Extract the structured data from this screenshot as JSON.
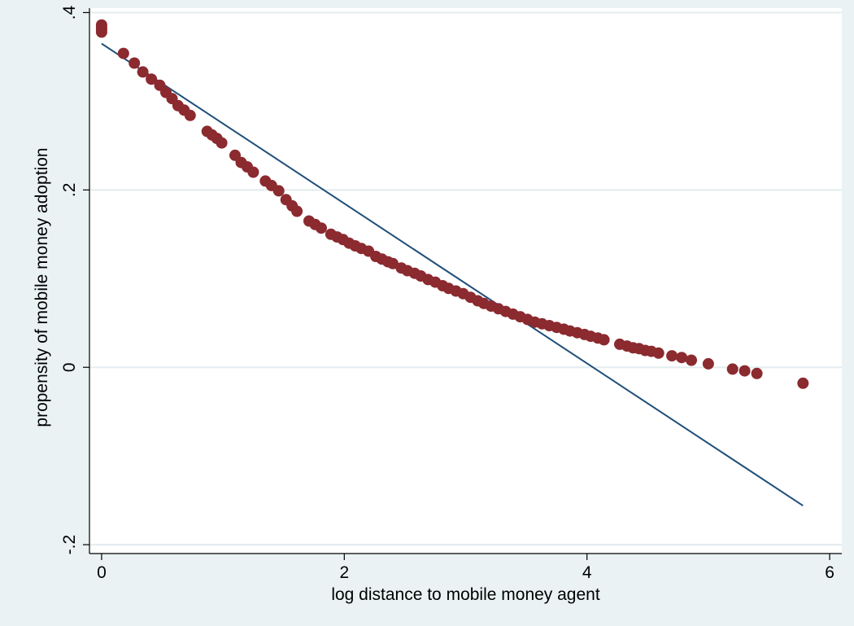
{
  "chart_data": {
    "type": "scatter",
    "title": "",
    "xlabel": "log distance to mobile money agent",
    "ylabel": "propensity of mobile money adoption",
    "xlim": [
      -0.1,
      6.1
    ],
    "ylim": [
      -0.21,
      0.405
    ],
    "x_ticks": [
      0,
      2,
      4,
      6
    ],
    "x_tick_labels": [
      "0",
      "2",
      "4",
      "6"
    ],
    "y_ticks": [
      -0.2,
      0,
      0.2,
      0.4
    ],
    "y_tick_labels": [
      "-.2",
      "0",
      ".2",
      ".4"
    ],
    "grid": "horizontal",
    "legend": "none",
    "colors": {
      "points": "#8b2a2f",
      "fit_line": "#1f4e79",
      "plot_background": "#ffffff",
      "outer_background": "#eaf2f3",
      "grid": "#e3ecee"
    },
    "series": [
      {
        "kind": "scatter",
        "x": [
          0,
          0,
          0,
          0,
          0.18,
          0.27,
          0.34,
          0.41,
          0.48,
          0.53,
          0.58,
          0.63,
          0.68,
          0.73,
          0.87,
          0.91,
          0.95,
          0.99,
          1.1,
          1.15,
          1.2,
          1.25,
          1.35,
          1.4,
          1.46,
          1.52,
          1.57,
          1.61,
          1.71,
          1.76,
          1.81,
          1.89,
          1.94,
          1.99,
          2.04,
          2.09,
          2.14,
          2.2,
          2.26,
          2.31,
          2.36,
          2.4,
          2.47,
          2.52,
          2.58,
          2.63,
          2.69,
          2.75,
          2.81,
          2.86,
          2.92,
          2.98,
          3.04,
          3.1,
          3.15,
          3.21,
          3.27,
          3.33,
          3.39,
          3.45,
          3.51,
          3.57,
          3.63,
          3.69,
          3.75,
          3.81,
          3.86,
          3.92,
          3.98,
          4.03,
          4.09,
          4.14,
          4.27,
          4.33,
          4.38,
          4.43,
          4.48,
          4.53,
          4.59,
          4.7,
          4.78,
          4.86,
          5.0,
          5.2,
          5.3,
          5.4,
          5.78
        ],
        "y": [
          0.386,
          0.383,
          0.381,
          0.378,
          0.354,
          0.343,
          0.333,
          0.325,
          0.318,
          0.31,
          0.303,
          0.295,
          0.29,
          0.284,
          0.266,
          0.262,
          0.258,
          0.253,
          0.239,
          0.231,
          0.226,
          0.22,
          0.21,
          0.205,
          0.199,
          0.189,
          0.182,
          0.176,
          0.165,
          0.161,
          0.157,
          0.15,
          0.147,
          0.144,
          0.14,
          0.137,
          0.134,
          0.131,
          0.125,
          0.122,
          0.119,
          0.117,
          0.112,
          0.109,
          0.106,
          0.103,
          0.099,
          0.096,
          0.092,
          0.089,
          0.086,
          0.083,
          0.079,
          0.075,
          0.072,
          0.069,
          0.066,
          0.063,
          0.06,
          0.057,
          0.054,
          0.051,
          0.049,
          0.047,
          0.045,
          0.043,
          0.041,
          0.039,
          0.037,
          0.035,
          0.033,
          0.031,
          0.026,
          0.024,
          0.022,
          0.021,
          0.019,
          0.018,
          0.016,
          0.013,
          0.011,
          0.008,
          0.004,
          -0.002,
          -0.004,
          -0.007,
          -0.018
        ]
      },
      {
        "kind": "line",
        "x": [
          0,
          5.78
        ],
        "y": [
          0.365,
          -0.156
        ]
      }
    ]
  }
}
